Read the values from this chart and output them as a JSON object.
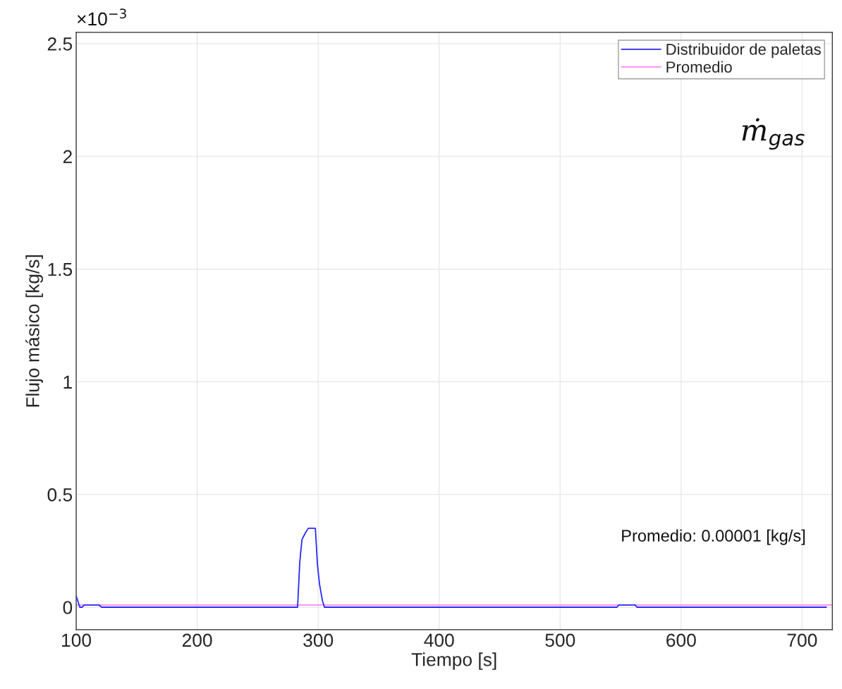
{
  "chart_data": {
    "type": "line",
    "xlabel": "Tiempo [s]",
    "ylabel": "Flujo másico [kg/s]",
    "series": [
      {
        "name": "Distribuidor de paletas",
        "color": "#2a2aff",
        "x": [
          100,
          103,
          105,
          106.5,
          118.7,
          121,
          260,
          282.5,
          283,
          284.8,
          286.6,
          289.5,
          291.8,
          297.7,
          299.4,
          301.2,
          303.5,
          305.2,
          547,
          548.5,
          562,
          563.5,
          720
        ],
        "values": [
          0.05,
          0.0,
          0.0,
          0.01,
          0.01,
          0.0,
          0.0,
          0.0,
          0.0,
          0.2,
          0.3,
          0.33,
          0.35,
          0.35,
          0.19,
          0.1,
          0.03,
          0.0,
          0.0,
          0.01,
          0.01,
          0.0,
          0.0
        ]
      },
      {
        "name": "Promedio",
        "color": "#ff88ee",
        "x": [
          100,
          725
        ],
        "values": [
          0.01,
          0.01
        ]
      }
    ],
    "xlim": [
      100,
      725
    ],
    "ylim": [
      -0.1,
      2.55
    ],
    "xticks": [
      100,
      200,
      300,
      400,
      500,
      600,
      700
    ],
    "yticks": [
      0,
      0.5,
      1,
      1.5,
      2,
      2.5
    ],
    "annotations": [
      "×10$^{−3}$",
      "ṁ$_{gas}$",
      "Promedio: 0.00001 [kg/s]"
    ],
    "grid": true,
    "legend": "top right",
    "line_style": "solid",
    "marker": "none"
  }
}
